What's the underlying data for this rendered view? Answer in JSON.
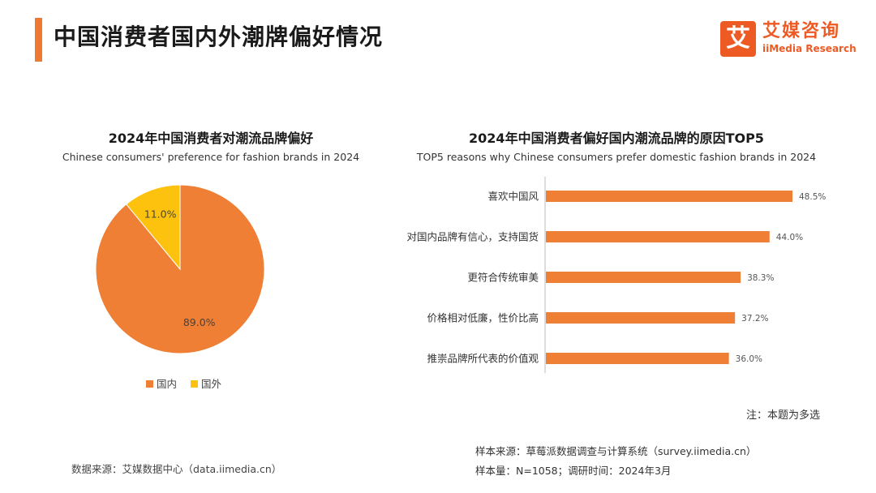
{
  "header": {
    "title": "中国消费者国内外潮牌偏好情况",
    "logo_mark": "艾",
    "logo_cn": "艾媒咨询",
    "logo_en": "iiMedia Research"
  },
  "colors": {
    "accent": "#ee7a31",
    "domestic": "#ee7f34",
    "foreign": "#fcc20e",
    "brand": "#ee5a24"
  },
  "chart_data": [
    {
      "type": "pie",
      "title": "2024年中国消费者对潮流品牌偏好",
      "subtitle": "Chinese consumers' preference for fashion brands in 2024",
      "categories": [
        "国内",
        "国外"
      ],
      "values": [
        89.0,
        11.0
      ],
      "labels": [
        "89.0%",
        "11.0%"
      ],
      "unit": "%",
      "legend_position": "bottom"
    },
    {
      "type": "bar",
      "orientation": "horizontal",
      "title": "2024年中国消费者偏好国内潮流品牌的原因TOP5",
      "subtitle": "TOP5 reasons why Chinese consumers prefer domestic fashion brands in 2024",
      "categories": [
        "喜欢中国风",
        "对国内品牌有信心，支持国货",
        "更符合传统审美",
        "价格相对低廉，性价比高",
        "推崇品牌所代表的价值观"
      ],
      "values": [
        48.5,
        44.0,
        38.3,
        37.2,
        36.0
      ],
      "labels": [
        "48.5%",
        "44.0%",
        "38.3%",
        "37.2%",
        "36.0%"
      ],
      "unit": "%",
      "xlim": [
        0,
        50
      ]
    }
  ],
  "footer": {
    "note": "注：本题为多选",
    "source_left": "数据来源：艾媒数据中心（data.iimedia.cn）",
    "sample_source": "样本来源：草莓派数据调查与计算系统（survey.iimedia.cn）",
    "sample_size": "样本量：N=1058；调研时间：2024年3月"
  }
}
